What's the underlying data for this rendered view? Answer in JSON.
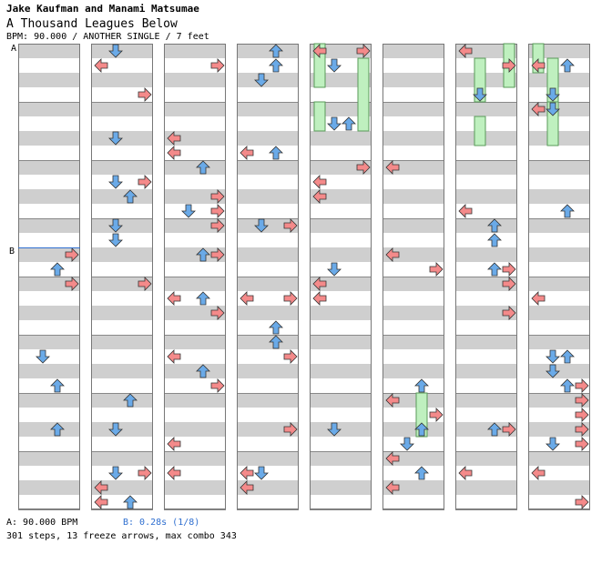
{
  "header": {
    "artist": "Jake Kaufman and Manami Matsumae",
    "title": "A Thousand Leagues Below",
    "meta": "BPM: 90.000 / ANOTHER SINGLE / 7 feet"
  },
  "markers": {
    "a": "A",
    "b": "B"
  },
  "footer": {
    "bpm_a": "A: 90.000 BPM",
    "bpm_b": "B: 0.28s (1/8)",
    "stats": "301 steps, 13 freeze arrows, max combo 343"
  },
  "colors": {
    "left_right_arrow": "#f48a8a",
    "up_down_arrow": "#6aaae8",
    "freeze": "#bff0bf",
    "stripe": "#cfcfcf"
  },
  "columns": [
    {
      "lane": 0,
      "notes": []
    },
    {
      "lane": 1,
      "notes": []
    },
    {
      "lane": 2,
      "notes": []
    },
    {
      "lane": 3,
      "notes": []
    },
    {
      "lane": 4,
      "notes": []
    },
    {
      "lane": 5,
      "notes": []
    },
    {
      "lane": 6,
      "notes": []
    },
    {
      "lane": 7,
      "notes": []
    }
  ]
}
